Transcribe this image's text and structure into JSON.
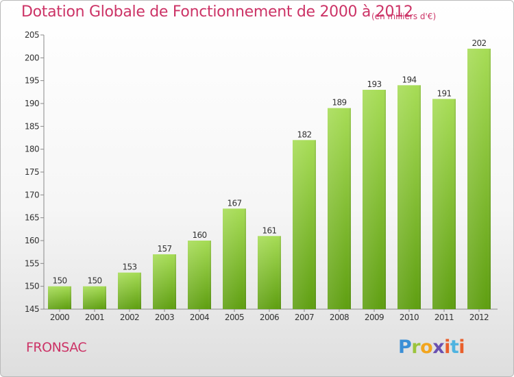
{
  "header": {
    "title": "Dotation Globale de Fonctionnement de 2000 à 2012",
    "unit": "(en milliers d'€)"
  },
  "footer": {
    "commune": "FRONSAC",
    "logo": "Proxiti"
  },
  "colors": {
    "title": "#cc3366",
    "bar_light": "#a6dc55",
    "bar_dark": "#5e9e10"
  },
  "chart_data": {
    "type": "bar",
    "title": "Dotation Globale de Fonctionnement de 2000 à 2012",
    "subtitle": "(en milliers d'€)",
    "categories": [
      "2000",
      "2001",
      "2002",
      "2003",
      "2004",
      "2005",
      "2006",
      "2007",
      "2008",
      "2009",
      "2010",
      "2011",
      "2012"
    ],
    "values": [
      150,
      150,
      153,
      157,
      160,
      167,
      161,
      182,
      189,
      193,
      194,
      191,
      202
    ],
    "ylim": [
      145,
      205
    ],
    "yticks": [
      145,
      150,
      155,
      160,
      165,
      170,
      175,
      180,
      185,
      190,
      195,
      200,
      205
    ],
    "grid": false,
    "data_labels": true
  }
}
